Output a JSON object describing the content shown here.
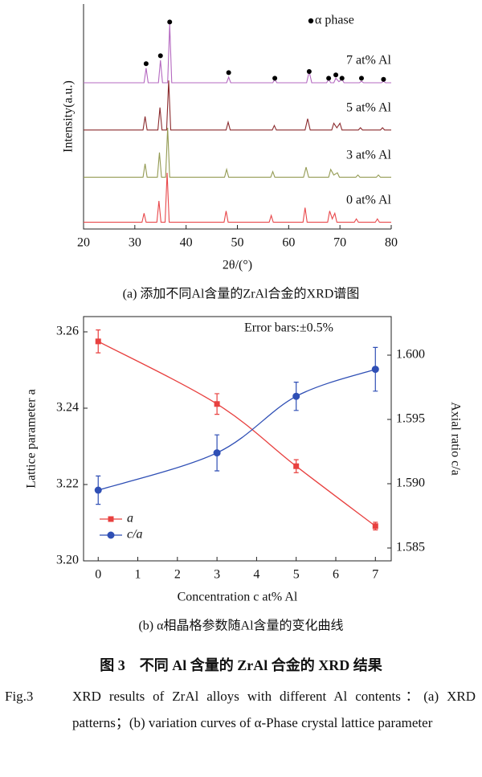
{
  "chart_data": [
    {
      "type": "line",
      "x_label": "2θ/(°)",
      "y_label": "Intensity(a.u.)",
      "subtitle": "(a) 添加不同Al含量的ZrAl合金的XRD谱图",
      "xlim": [
        20,
        80
      ],
      "xticks": [
        20,
        30,
        40,
        50,
        60,
        70,
        80
      ],
      "ylim": [
        0,
        100
      ],
      "series": [
        {
          "name": "0 at% Al",
          "color": "#e8474a",
          "x": [
            20,
            31.4,
            31.8,
            32.2,
            34.3,
            34.7,
            35.1,
            35.9,
            36.3,
            36.7,
            47.4,
            47.8,
            48.2,
            56.2,
            56.6,
            57.0,
            62.8,
            63.2,
            63.6,
            67.6,
            68.0,
            68.5,
            69.0,
            69.4,
            72.8,
            73.2,
            73.6,
            76.9,
            77.3,
            77.7,
            80
          ],
          "values": [
            3,
            3,
            7,
            3,
            3,
            12.5,
            3,
            3,
            25,
            3,
            3,
            8,
            3,
            3,
            6,
            3,
            3,
            9.5,
            3,
            3,
            8,
            4.5,
            7,
            3,
            3,
            4.5,
            3,
            3,
            4.5,
            3,
            3
          ]
        },
        {
          "name": "3 at% Al",
          "color": "#939a52",
          "x": [
            20,
            31.6,
            32.0,
            32.4,
            34.4,
            34.8,
            35.2,
            36.0,
            36.4,
            36.8,
            47.5,
            47.9,
            48.3,
            56.5,
            56.9,
            57.3,
            62.9,
            63.4,
            63.9,
            67.8,
            68.2,
            68.8,
            69.5,
            69.9,
            73.1,
            73.5,
            73.9,
            77.1,
            77.5,
            77.9,
            80
          ],
          "values": [
            23,
            23,
            29,
            23,
            23,
            34,
            23,
            23,
            45,
            23,
            23,
            26.5,
            23,
            23,
            25.5,
            23,
            23,
            27.5,
            23,
            23,
            26.5,
            24,
            25,
            23,
            23,
            24,
            23,
            23,
            24,
            23,
            23
          ]
        },
        {
          "name": "5 at% Al",
          "color": "#8b2b2e",
          "x": [
            20,
            31.6,
            32.0,
            32.4,
            34.5,
            34.9,
            35.3,
            36.2,
            36.6,
            37.0,
            47.8,
            48.2,
            48.6,
            56.8,
            57.2,
            57.6,
            63.2,
            63.7,
            64.2,
            68.4,
            68.8,
            69.4,
            70.0,
            70.4,
            73.6,
            74.0,
            74.4,
            77.9,
            78.3,
            78.7,
            80
          ],
          "values": [
            44,
            44,
            50,
            44,
            44,
            54,
            44,
            44,
            66,
            44,
            44,
            47.5,
            44,
            44,
            46,
            44,
            44,
            49,
            44,
            44,
            47,
            45,
            47,
            44,
            44,
            45,
            44,
            44,
            45,
            44,
            44
          ]
        },
        {
          "name": "7 at% Al",
          "color": "#b468c0",
          "x": [
            20,
            31.8,
            32.2,
            32.6,
            34.6,
            35.0,
            35.4,
            36.4,
            36.8,
            37.2,
            47.9,
            48.3,
            48.7,
            56.9,
            57.3,
            57.7,
            63.5,
            64.0,
            64.5,
            67.4,
            67.8,
            68.2,
            68.8,
            69.2,
            69.8,
            70.4,
            70.8,
            73.8,
            74.2,
            74.6,
            78.1,
            78.5,
            78.9,
            80
          ],
          "values": [
            65,
            65,
            71.5,
            65,
            65,
            75,
            65,
            65,
            91,
            65,
            65,
            67.5,
            65,
            65,
            66.5,
            65,
            65,
            70,
            65,
            65,
            66.5,
            65,
            65,
            67,
            65.5,
            66.5,
            65,
            65,
            65.7,
            65,
            65,
            65.7,
            65,
            65
          ]
        }
      ],
      "markers": {
        "name": "α phase",
        "color": "#000000",
        "x": [
          32.2,
          35.0,
          36.8,
          48.3,
          57.3,
          64.0,
          67.8,
          69.2,
          70.4,
          74.2,
          78.5
        ],
        "values": [
          73.5,
          77,
          92,
          69.5,
          67,
          70,
          67,
          68.5,
          67,
          67,
          66.5
        ]
      }
    },
    {
      "type": "line",
      "x_label": "Concentration c at% Al",
      "y_label": "Lattice parameter a",
      "y2_label": "Axial ratio c/a",
      "subtitle": "(b) α相晶格参数随Al含量的变化曲线",
      "annotation": "Error bars:±0.5%",
      "xlim": [
        -0.37,
        7.4
      ],
      "xticks": [
        0,
        1,
        2,
        3,
        4,
        5,
        6,
        7
      ],
      "ylim": [
        3.2,
        3.264
      ],
      "yticks": [
        {
          "value": 3.2,
          "label": "3.20"
        },
        3.22,
        3.24,
        3.26
      ],
      "y2lim": [
        1.584,
        1.603
      ],
      "y2ticks": [
        1.585,
        {
          "value": 1.59,
          "label": "1.590"
        },
        1.595,
        {
          "value": 1.6,
          "label": "1.600"
        }
      ],
      "x": [
        0,
        3,
        5,
        7
      ],
      "legend": "lower left",
      "series": [
        {
          "name": "a",
          "color": "#e8403f",
          "marker": "square",
          "values": [
            3.2575,
            3.2411,
            3.2248,
            3.2091
          ],
          "errors": [
            0.003,
            0.0027,
            0.0017,
            0.001
          ]
        },
        {
          "name": "c/a",
          "color": "#2f4fb5",
          "marker": "circle",
          "axis": "y2",
          "values": [
            1.5895,
            1.5924,
            1.5968,
            1.5989
          ],
          "errors": [
            0.0011,
            0.0014,
            0.0011,
            0.0017
          ]
        }
      ]
    }
  ],
  "figure": {
    "title": "图 3　不同 Al 含量的 ZrAl 合金的 XRD 结果",
    "label": "Fig.3",
    "caption": "XRD results of ZrAl alloys with different Al contents：(a) XRD patterns；(b) variation curves of α-Phase crystal lattice parameter"
  }
}
